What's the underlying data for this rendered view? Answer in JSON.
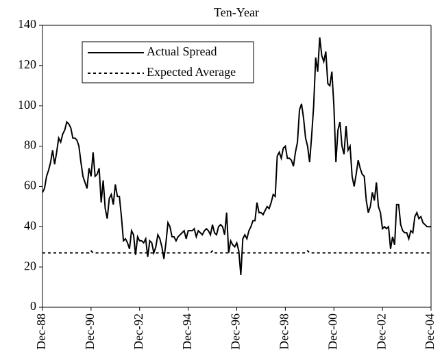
{
  "chart_data": {
    "type": "line",
    "title": "Ten-Year",
    "categories": [
      "Dec-88",
      null,
      null,
      null,
      null,
      null,
      null,
      null,
      null,
      null,
      null,
      null,
      null,
      null,
      null,
      null,
      null,
      null,
      null,
      null,
      null,
      null,
      null,
      null,
      "Dec-90",
      null,
      null,
      null,
      null,
      null,
      null,
      null,
      null,
      null,
      null,
      null,
      null,
      null,
      null,
      null,
      null,
      null,
      null,
      null,
      null,
      null,
      null,
      null,
      "Dec-92",
      null,
      null,
      null,
      null,
      null,
      null,
      null,
      null,
      null,
      null,
      null,
      null,
      null,
      null,
      null,
      null,
      null,
      null,
      null,
      null,
      null,
      null,
      null,
      "Dec-94",
      null,
      null,
      null,
      null,
      null,
      null,
      null,
      null,
      null,
      null,
      null,
      null,
      null,
      null,
      null,
      null,
      null,
      null,
      null,
      null,
      null,
      null,
      null,
      "Dec-96",
      null,
      null,
      null,
      null,
      null,
      null,
      null,
      null,
      null,
      null,
      null,
      null,
      null,
      null,
      null,
      null,
      null,
      null,
      null,
      null,
      null,
      null,
      null,
      "Dec-98",
      null,
      null,
      null,
      null,
      null,
      null,
      null,
      null,
      null,
      null,
      null,
      null,
      null,
      null,
      null,
      null,
      null,
      null,
      null,
      null,
      null,
      null,
      null,
      "Dec-00",
      null,
      null,
      null,
      null,
      null,
      null,
      null,
      null,
      null,
      null,
      null,
      null,
      null,
      null,
      null,
      null,
      null,
      null,
      null,
      null,
      null,
      null,
      null,
      "Dec-02",
      null,
      null,
      null,
      null,
      null,
      null,
      null,
      null,
      null,
      null,
      null,
      null,
      null,
      null,
      null,
      null,
      null,
      null,
      null,
      null,
      null,
      null,
      null,
      "Dec-04"
    ],
    "series": [
      {
        "name": "Actual Spread",
        "color": "#000000",
        "dash": false,
        "values": [
          57,
          59,
          65,
          68,
          72,
          78,
          71,
          77,
          84,
          82,
          86,
          88,
          92,
          91,
          89,
          84,
          84,
          83,
          80,
          72,
          65,
          62,
          59,
          69,
          65,
          77,
          65,
          66,
          69,
          52,
          63,
          49,
          44,
          54,
          56,
          51,
          61,
          55,
          55,
          45,
          33,
          34,
          32,
          29,
          38,
          36,
          26,
          35,
          33,
          33,
          32,
          34,
          25,
          33,
          32,
          27,
          30,
          36,
          34,
          30,
          24,
          32,
          42,
          40,
          35,
          35,
          33,
          35,
          36,
          37,
          38,
          34,
          38,
          38,
          38,
          39,
          35,
          38,
          37,
          36,
          38,
          39,
          38,
          36,
          41,
          37,
          36,
          40,
          41,
          40,
          36,
          47,
          27,
          33,
          31,
          30,
          32,
          28,
          16,
          34,
          36,
          34,
          38,
          40,
          43,
          43,
          52,
          47,
          47,
          46,
          48,
          50,
          49,
          52,
          56,
          55,
          75,
          77,
          74,
          79,
          80,
          74,
          74,
          73,
          70,
          77,
          82,
          98,
          101,
          94,
          84,
          80,
          72,
          85,
          100,
          124,
          117,
          134,
          125,
          122,
          127,
          111,
          110,
          117,
          100,
          72,
          88,
          92,
          80,
          76,
          90,
          78,
          80,
          65,
          60,
          66,
          73,
          69,
          66,
          65,
          53,
          47,
          50,
          57,
          53,
          62,
          50,
          47,
          39,
          40,
          39,
          40,
          29,
          35,
          31,
          51,
          51,
          41,
          38,
          37,
          37,
          34,
          38,
          37,
          45,
          47,
          44,
          45,
          42,
          41,
          40,
          40,
          40
        ]
      },
      {
        "name": "Expected Average",
        "color": "#000000",
        "dash": true,
        "values": [
          27,
          27,
          27,
          27,
          27,
          27,
          27,
          27,
          27,
          27,
          27,
          27,
          27,
          27,
          27,
          27,
          27,
          27,
          27,
          27,
          27,
          27,
          27,
          27,
          28,
          27,
          27,
          27,
          27,
          27,
          27,
          27,
          27,
          27,
          27,
          27,
          27,
          27,
          27,
          27,
          27,
          27,
          27,
          27,
          27,
          27,
          27,
          27,
          27,
          27,
          27,
          27,
          27,
          27,
          27,
          27,
          27,
          27,
          27,
          27,
          27,
          27,
          27,
          27,
          27,
          27,
          27,
          27,
          27,
          27,
          27,
          27,
          27,
          27,
          27,
          27,
          27,
          27,
          27,
          27,
          27,
          27,
          27,
          27,
          28,
          27,
          27,
          27,
          27,
          27,
          27,
          27,
          27,
          27,
          27,
          27,
          27,
          27,
          27,
          27,
          27,
          27,
          27,
          27,
          27,
          27,
          27,
          27,
          27,
          27,
          27,
          27,
          27,
          27,
          27,
          27,
          27,
          27,
          27,
          27,
          27,
          27,
          27,
          27,
          27,
          27,
          27,
          27,
          27,
          27,
          27,
          28,
          27,
          27,
          27,
          27,
          27,
          27,
          27,
          27,
          27,
          27,
          27,
          27,
          27,
          27,
          27,
          27,
          27,
          27,
          27,
          27,
          27,
          27,
          27,
          27,
          27,
          27,
          27,
          27,
          27,
          27,
          27,
          27,
          27,
          27,
          27,
          27,
          27,
          27,
          27,
          27,
          27,
          27,
          27,
          27,
          27,
          27,
          27,
          27,
          27,
          27,
          27,
          27,
          27,
          27,
          27,
          27,
          27,
          27,
          27,
          27,
          27
        ]
      }
    ],
    "ylim": [
      0,
      140
    ],
    "yticks": [
      0,
      20,
      40,
      60,
      80,
      100,
      120,
      140
    ],
    "grid": false
  }
}
